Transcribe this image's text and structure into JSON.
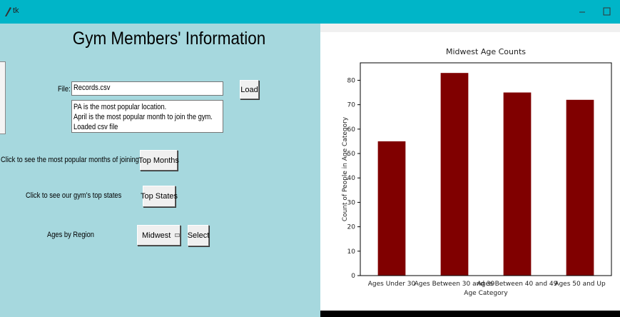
{
  "window": {
    "title": "tk"
  },
  "app": {
    "heading": "Gym Members' Information",
    "file_label": "File:",
    "file_entry": "Records.csv",
    "load_button": "Load",
    "output_lines": [
      "PA is the most popular location.",
      "April is the most popular month to join the gym.",
      "Loaded csv file"
    ],
    "months_prompt": "Click to see the most popular months of joining",
    "months_button": "Top Months",
    "states_prompt": "Click to see our gym's top states",
    "states_button": "Top States",
    "region_label": "Ages by Region",
    "region_option": "Midwest",
    "select_button": "Select"
  },
  "chart_data": {
    "type": "bar",
    "title": "Midwest Age Counts",
    "x_label": "Age Category",
    "y_label": "Count of People in Age Category",
    "categories": [
      "Ages Under 30",
      "Ages Between 30 and 39",
      "Ages Between 40 and 49",
      "Ages 50 and Up"
    ],
    "values": [
      55,
      83,
      75,
      72
    ],
    "color": "#800000",
    "ylim": [
      0,
      87.15
    ],
    "yticks": [
      0,
      10,
      20,
      30,
      40,
      50,
      60,
      70,
      80
    ],
    "grid": false
  }
}
